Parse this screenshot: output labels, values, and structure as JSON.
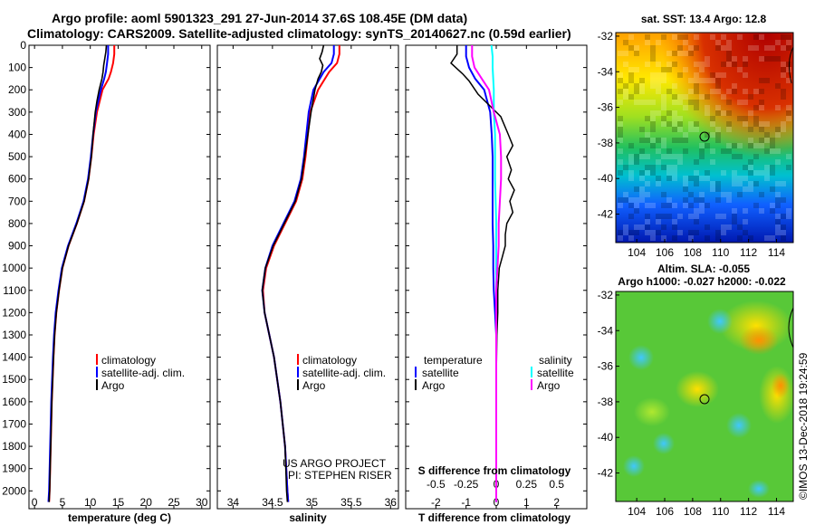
{
  "header": {
    "title_line1": "Argo profile: aoml 5901323_291 27-Jun-2014 37.6S 108.45E (DM data)",
    "title_line2": "Climatology: CARS2009. Satellite-adjusted climatology: synTS_20140627.nc (0.59d earlier)"
  },
  "colors": {
    "climatology": "#ff0000",
    "satellite": "#0000ff",
    "argo": "#000000",
    "salinity_satellite": "#00ffff",
    "salinity_argo": "#ff00ff"
  },
  "annotations": {
    "project": "US ARGO PROJECT",
    "pi": "PI: STEPHEN RISER",
    "timestamp": "©IMOS 13-Dec-2018 19:24:59"
  },
  "chart_data": [
    {
      "type": "line",
      "panel": "temperature",
      "xlabel": "temperature (deg C)",
      "xlim": [
        -1,
        31.5
      ],
      "ylim": [
        0,
        2080
      ],
      "xticks": [
        "0",
        "5",
        "10",
        "15",
        "20",
        "25",
        "30"
      ],
      "yticks": [
        "0",
        "100",
        "200",
        "300",
        "400",
        "500",
        "600",
        "700",
        "800",
        "900",
        "1000",
        "1100",
        "1200",
        "1300",
        "1400",
        "1500",
        "1600",
        "1700",
        "1800",
        "1900",
        "2000"
      ],
      "legend": [
        "climatology",
        "satellite-adj. clim.",
        "Argo"
      ],
      "series": [
        {
          "name": "climatology",
          "depth": [
            0,
            40,
            80,
            120,
            150,
            200,
            300,
            400,
            500,
            600,
            700,
            800,
            900,
            1000,
            1100,
            1200,
            1300,
            1400,
            1600,
            1800,
            2000,
            2050
          ],
          "values": [
            14.3,
            14.3,
            14.1,
            13.7,
            13.3,
            12.2,
            11.2,
            10.6,
            10.2,
            9.7,
            8.9,
            7.6,
            6.1,
            5.0,
            4.4,
            3.9,
            3.6,
            3.4,
            3.1,
            2.9,
            2.7,
            2.6
          ]
        },
        {
          "name": "satellite-adj. clim.",
          "depth": [
            0,
            40,
            80,
            120,
            150,
            200,
            300,
            400,
            500,
            600,
            700,
            800,
            900,
            1000,
            1100,
            1200,
            1300,
            1400,
            1600,
            1800,
            2000,
            2050
          ],
          "values": [
            13.2,
            13.2,
            13.0,
            12.8,
            12.5,
            11.9,
            11.0,
            10.5,
            10.1,
            9.6,
            8.8,
            7.5,
            6.0,
            4.9,
            4.3,
            3.8,
            3.5,
            3.3,
            3.0,
            2.8,
            2.6,
            2.5
          ]
        },
        {
          "name": "Argo",
          "depth": [
            0,
            30,
            60,
            90,
            120,
            150,
            200,
            250,
            300,
            400,
            500,
            600,
            700,
            800,
            900,
            1000,
            1100,
            1200,
            1300,
            1400,
            1600,
            1800,
            2000,
            2050
          ],
          "values": [
            12.9,
            12.8,
            12.6,
            12.4,
            12.3,
            12.1,
            11.6,
            11.2,
            10.9,
            10.5,
            10.2,
            9.7,
            8.9,
            7.6,
            6.1,
            5.0,
            4.4,
            3.9,
            3.6,
            3.4,
            3.1,
            2.9,
            2.7,
            2.6
          ]
        }
      ]
    },
    {
      "type": "line",
      "panel": "salinity",
      "xlabel": "salinity",
      "xlim": [
        33.8,
        36.1
      ],
      "ylim": [
        0,
        2080
      ],
      "xticks": [
        "34",
        "34.5",
        "35",
        "35.5",
        "36"
      ],
      "legend": [
        "climatology",
        "satellite-adj. clim.",
        "Argo"
      ],
      "series": [
        {
          "name": "climatology",
          "depth": [
            0,
            40,
            80,
            120,
            200,
            300,
            400,
            500,
            600,
            700,
            800,
            900,
            1000,
            1100,
            1200,
            1300,
            1400,
            1600,
            1800,
            2000,
            2050
          ],
          "values": [
            35.35,
            35.35,
            35.32,
            35.22,
            35.08,
            34.98,
            34.95,
            34.92,
            34.88,
            34.8,
            34.66,
            34.52,
            34.42,
            34.38,
            34.4,
            34.46,
            34.52,
            34.6,
            34.66,
            34.69,
            34.7
          ]
        },
        {
          "name": "satellite-adj. clim.",
          "depth": [
            0,
            40,
            80,
            120,
            200,
            300,
            400,
            500,
            600,
            700,
            800,
            900,
            1000,
            1100,
            1200,
            1300,
            1400,
            1600,
            1800,
            2000,
            2050
          ],
          "values": [
            35.28,
            35.28,
            35.25,
            35.15,
            35.02,
            34.96,
            34.93,
            34.9,
            34.86,
            34.78,
            34.64,
            34.5,
            34.41,
            34.37,
            34.4,
            34.46,
            34.52,
            34.6,
            34.66,
            34.69,
            34.7
          ]
        },
        {
          "name": "Argo",
          "depth": [
            0,
            30,
            60,
            90,
            120,
            150,
            200,
            300,
            400,
            500,
            600,
            700,
            800,
            900,
            1000,
            1100,
            1200,
            1300,
            1400,
            1600,
            1800,
            2000,
            2050
          ],
          "values": [
            35.15,
            35.13,
            35.1,
            35.14,
            35.12,
            35.08,
            35.04,
            34.99,
            34.95,
            34.91,
            34.87,
            34.79,
            34.65,
            34.51,
            34.41,
            34.37,
            34.4,
            34.46,
            34.52,
            34.6,
            34.66,
            34.68,
            34.69
          ]
        }
      ]
    },
    {
      "type": "line",
      "panel": "difference",
      "xlabel": "T difference from climatology",
      "xlim": [
        -3,
        3
      ],
      "ylim": [
        0,
        2080
      ],
      "xticks": [
        "-2",
        "-1",
        "0",
        "1",
        "2"
      ],
      "sticks": [
        "-0.5",
        "-0.25",
        "0",
        "0.25",
        "0.5"
      ],
      "s_axis_label": "S difference from climatology",
      "legend_left_title": "temperature",
      "legend_right_title": "salinity",
      "legend_left": [
        "satellite",
        "Argo"
      ],
      "legend_right": [
        "satellite",
        "Argo"
      ],
      "series": [
        {
          "name": "temperature satellite",
          "depth": [
            0,
            50,
            100,
            150,
            200,
            300,
            400,
            500,
            600,
            700,
            800,
            900,
            1000,
            1100,
            1200,
            1300,
            1500,
            2000,
            2050
          ],
          "values": [
            -1.0,
            -1.0,
            -0.9,
            -0.7,
            -0.4,
            -0.2,
            -0.15,
            -0.12,
            -0.12,
            -0.12,
            -0.12,
            -0.1,
            -0.1,
            -0.08,
            -0.04,
            0.0,
            0.0,
            0.0,
            0.0
          ]
        },
        {
          "name": "temperature Argo",
          "depth": [
            0,
            40,
            80,
            130,
            160,
            220,
            260,
            320,
            400,
            450,
            500,
            560,
            600,
            650,
            700,
            750,
            800,
            850,
            900,
            950,
            1000,
            1100,
            1200,
            1300,
            1500,
            1800,
            2050
          ],
          "values": [
            -1.3,
            -1.3,
            -1.5,
            -1.1,
            -0.9,
            -0.6,
            -0.3,
            0.15,
            0.4,
            0.55,
            0.35,
            0.5,
            0.4,
            0.6,
            0.45,
            0.55,
            0.35,
            0.3,
            0.3,
            0.2,
            0.1,
            0.05,
            0.05,
            0.02,
            0.0,
            0.0,
            0.0
          ]
        },
        {
          "name": "salinity satellite",
          "depth": [
            0,
            50,
            100,
            200,
            300,
            400,
            600,
            800,
            1000,
            1500,
            2050
          ],
          "values": [
            -0.04,
            -0.03,
            -0.03,
            -0.02,
            -0.02,
            -0.01,
            -0.01,
            0.0,
            0.0,
            0.0,
            0.0
          ]
        },
        {
          "name": "salinity Argo",
          "depth": [
            0,
            50,
            100,
            150,
            200,
            300,
            400,
            500,
            600,
            700,
            800,
            900,
            1000,
            1100,
            1200,
            1400,
            1600,
            2050
          ],
          "values": [
            -0.2,
            -0.2,
            -0.18,
            -0.12,
            -0.06,
            -0.02,
            0.03,
            0.04,
            0.04,
            0.03,
            0.02,
            0.02,
            0.01,
            0.0,
            0.0,
            0.0,
            0.0,
            0.0
          ]
        }
      ]
    },
    {
      "type": "heatmap",
      "panel": "sst-map",
      "title": "sat. SST: 13.4 Argo: 12.8",
      "xticks": [
        "104",
        "106",
        "108",
        "110",
        "112",
        "114"
      ],
      "yticks": [
        "-32",
        "-34",
        "-36",
        "-38",
        "-40",
        "-42"
      ],
      "xlim": [
        102.5,
        115.2
      ],
      "ylim": [
        -43.6,
        -31.8
      ],
      "marker": {
        "lon": 108.45,
        "lat": -37.6
      },
      "field": "SST decreasing southward: warm (red) north, cool (blue) south"
    },
    {
      "type": "heatmap",
      "panel": "sla-map",
      "title_line1": "Altim. SLA: -0.055",
      "title_line2": "Argo h1000: -0.027 h2000: -0.022",
      "xticks": [
        "104",
        "106",
        "108",
        "110",
        "112",
        "114"
      ],
      "yticks": [
        "-32",
        "-34",
        "-36",
        "-38",
        "-40",
        "-42"
      ],
      "xlim": [
        102.5,
        115.2
      ],
      "ylim": [
        -43.6,
        -31.8
      ],
      "marker": {
        "lon": 108.45,
        "lat": -37.6
      },
      "field": "sea level anomaly: mostly green with yellow/orange highs and cyan lows"
    }
  ]
}
